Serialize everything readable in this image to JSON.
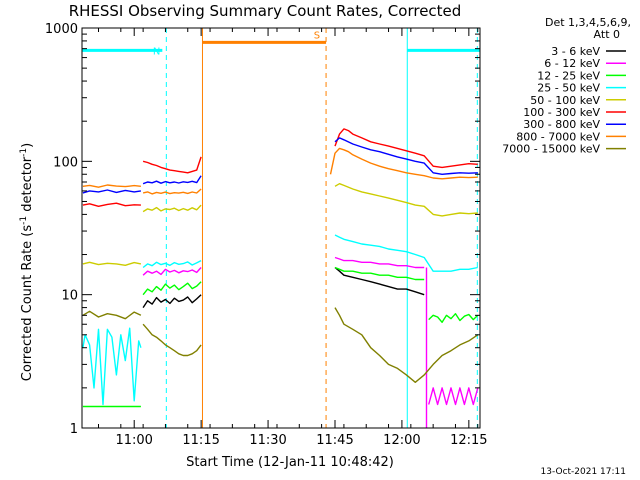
{
  "chart_data": {
    "type": "line",
    "title": "RHESSI Observing Summary Count Rates, Corrected",
    "xlabel": "Start Time (12-Jan-11 10:48:42)",
    "ylabel_main": "Corrected Count Rate (s",
    "ylabel_sup1": "-1",
    "ylabel_mid": " detector",
    "ylabel_sup2": "-1",
    "ylabel_end": ")",
    "yscale": "log",
    "ylim": [
      1,
      1000
    ],
    "xlim": [
      -13.7,
      75.5
    ],
    "x_unit": "minutes after 11:02:00",
    "x_ticks": [
      {
        "t": -2,
        "label": "11:00"
      },
      {
        "t": 13,
        "label": "11:15"
      },
      {
        "t": 28,
        "label": "11:30"
      },
      {
        "t": 43,
        "label": "11:45"
      },
      {
        "t": 58,
        "label": "12:00"
      },
      {
        "t": 73,
        "label": "12:15"
      }
    ],
    "y_ticks": [
      {
        "v": 1,
        "label": "1"
      },
      {
        "v": 10,
        "label": "10"
      },
      {
        "v": 100,
        "label": "100"
      },
      {
        "v": 1000,
        "label": "1000"
      }
    ],
    "legend_header": [
      "Det 1,3,4,5,6,9,",
      "Att 0"
    ],
    "legend_position": "top-right",
    "legend_entries": [
      {
        "label": "3 - 6 keV",
        "color": "#000000"
      },
      {
        "label": "6 - 12 keV",
        "color": "#ff00ff"
      },
      {
        "label": "12 - 25 keV",
        "color": "#00ff00"
      },
      {
        "label": "25 - 50 keV",
        "color": "#00ffff"
      },
      {
        "label": "50 - 100 keV",
        "color": "#cccc00"
      },
      {
        "label": "100 - 300 keV",
        "color": "#ff0000"
      },
      {
        "label": "300 - 800 keV",
        "color": "#0000ff"
      },
      {
        "label": "800 - 7000 keV",
        "color": "#ff8000"
      },
      {
        "label": "7000 - 15000 keV",
        "color": "#808000"
      }
    ],
    "state_bars": [
      {
        "label": "N",
        "color": "#00ffff",
        "segments": [
          [
            -13.7,
            4.3
          ],
          [
            59.2,
            75.5
          ]
        ],
        "level": 680
      },
      {
        "label": "S",
        "color": "#ff8000",
        "segments": [
          [
            13.3,
            41.0
          ]
        ],
        "level": 780
      }
    ],
    "vlines": [
      {
        "t": 5.2,
        "color": "#00ffff",
        "dash": true
      },
      {
        "t": 13.3,
        "color": "#ff8000",
        "dash": false
      },
      {
        "t": 41.0,
        "color": "#ff8000",
        "dash": true
      },
      {
        "t": 59.2,
        "color": "#00ffff",
        "dash": false
      },
      {
        "t": 74.9,
        "color": "#00ffff",
        "dash": true
      }
    ],
    "series": [
      {
        "name": "3 - 6 keV",
        "color": "#000000",
        "segments": [
          {
            "x": [
              0,
              1,
              2,
              3,
              4,
              5,
              6,
              7,
              8,
              9,
              10,
              11,
              12,
              13
            ],
            "y": [
              8,
              9,
              8.5,
              9.5,
              8.8,
              9.2,
              8.6,
              9.4,
              8.9,
              9.1,
              9.6,
              8.7,
              9.3,
              10
            ]
          },
          {
            "x": [
              43,
              44,
              45,
              47,
              49,
              51,
              53,
              55,
              57,
              59,
              61,
              63
            ],
            "y": [
              16,
              15,
              14,
              13.5,
              13,
              12.5,
              12,
              11.5,
              11,
              11,
              10.5,
              10
            ]
          }
        ]
      },
      {
        "name": "6 - 12 keV",
        "color": "#ff00ff",
        "segments": [
          {
            "x": [
              -0.5,
              -0.5
            ],
            "y": [
              1,
              0.9
            ]
          },
          {
            "x": [
              0,
              1,
              2,
              3,
              4,
              5,
              6,
              7,
              8,
              9,
              10,
              11,
              12,
              13
            ],
            "y": [
              14,
              15,
              14.5,
              15,
              14.2,
              15.5,
              14.8,
              15.2,
              14.6,
              15.1,
              14.9,
              15.3,
              14.7,
              16
            ]
          },
          {
            "x": [
              43,
              44,
              45,
              47,
              49,
              51,
              53,
              55,
              57,
              59,
              61,
              63
            ],
            "y": [
              19,
              18.5,
              18,
              18,
              17.5,
              17.5,
              17,
              17,
              16.5,
              16.5,
              16,
              16
            ]
          },
          {
            "x": [
              63.5,
              63.5
            ],
            "y": [
              16,
              1
            ]
          },
          {
            "x": [
              64,
              65,
              66,
              67,
              68,
              69,
              70,
              71,
              72,
              73,
              74,
              75
            ],
            "y": [
              1.5,
              2,
              1.5,
              2,
              1.5,
              2,
              1.5,
              2,
              1.5,
              2,
              1.5,
              2
            ]
          }
        ]
      },
      {
        "name": "12 - 25 keV",
        "color": "#00ff00",
        "segments": [
          {
            "x": [
              -13.5,
              -12,
              -10,
              -8,
              -6,
              -4,
              -2,
              -0.5
            ],
            "y": [
              1.45,
              1.45,
              1.45,
              1.45,
              1.45,
              1.45,
              1.45,
              1.45
            ]
          },
          {
            "x": [
              0,
              1,
              2,
              3,
              4,
              5,
              6,
              7,
              8,
              9,
              10,
              11,
              12,
              13
            ],
            "y": [
              10,
              11,
              10.5,
              11.5,
              10.8,
              12,
              11.2,
              11.8,
              10.9,
              11.5,
              12.2,
              11.1,
              11.6,
              12.5
            ]
          },
          {
            "x": [
              43,
              44,
              45,
              47,
              49,
              51,
              53,
              55,
              57,
              59,
              61,
              63
            ],
            "y": [
              16,
              15.5,
              15,
              15,
              14.5,
              14.5,
              14,
              14,
              13.5,
              13.5,
              13,
              13
            ]
          },
          {
            "x": [
              64,
              65,
              66,
              67,
              68,
              69,
              70,
              71,
              72,
              73,
              74,
              75
            ],
            "y": [
              6.5,
              7,
              6.8,
              6.2,
              7,
              6.6,
              7.2,
              6.4,
              6.9,
              7.1,
              6.5,
              7
            ]
          }
        ]
      },
      {
        "name": "25 - 50 keV",
        "color": "#00ffff",
        "segments": [
          {
            "x": [
              -13.5,
              -13,
              -12,
              -11,
              -10,
              -9,
              -8,
              -7,
              -6,
              -5,
              -4,
              -3,
              -2,
              -1,
              -0.5
            ],
            "y": [
              4,
              5,
              4.2,
              2,
              5.5,
              1.5,
              5.5,
              4.8,
              2.5,
              5,
              3.2,
              5.6,
              1.6,
              4.5,
              4
            ]
          },
          {
            "x": [
              0,
              1,
              2,
              3,
              4,
              5,
              6,
              7,
              8,
              9,
              10,
              11,
              12,
              13
            ],
            "y": [
              16,
              17,
              16.5,
              17.5,
              16.8,
              17.2,
              16.6,
              17.4,
              16.9,
              17.1,
              17.6,
              16.7,
              17.3,
              18
            ]
          },
          {
            "x": [
              43,
              44,
              45,
              47,
              49,
              51,
              53,
              55,
              57,
              59,
              61,
              63,
              65,
              67,
              69,
              71,
              73,
              75
            ],
            "y": [
              28,
              27,
              26,
              25,
              24,
              23.5,
              23,
              22,
              21.5,
              21,
              20,
              19,
              15,
              15,
              15,
              15.5,
              15.5,
              16
            ]
          }
        ]
      },
      {
        "name": "50 - 100 keV",
        "color": "#cccc00",
        "segments": [
          {
            "x": [
              -13.5,
              -12,
              -10,
              -8,
              -6,
              -4,
              -2,
              -0.5
            ],
            "y": [
              17,
              17.5,
              16.8,
              17.2,
              17,
              16.6,
              17.4,
              17
            ]
          },
          {
            "x": [
              0,
              1,
              2,
              3,
              4,
              5,
              6,
              7,
              8,
              9,
              10,
              11,
              12,
              13
            ],
            "y": [
              42,
              44,
              43,
              45,
              42.5,
              44,
              43.5,
              44.5,
              42.8,
              44.2,
              43,
              44.8,
              43.3,
              47
            ]
          },
          {
            "x": [
              43,
              44,
              45,
              47,
              49,
              51,
              53,
              55,
              57,
              59,
              61,
              63,
              65,
              67,
              69,
              71,
              73,
              75
            ],
            "y": [
              65,
              68,
              66,
              62,
              59,
              57,
              55,
              53,
              51,
              49,
              47,
              46,
              40,
              39,
              40,
              41,
              40.5,
              41
            ]
          }
        ]
      },
      {
        "name": "100 - 300 keV",
        "color": "#ff0000",
        "segments": [
          {
            "x": [
              -13.5,
              -12,
              -10,
              -8,
              -6,
              -4,
              -2,
              -0.5
            ],
            "y": [
              47,
              48,
              46,
              47.5,
              48.5,
              46.5,
              47.2,
              47
            ]
          },
          {
            "x": [
              0,
              1,
              2,
              3,
              4,
              5,
              6,
              7,
              8,
              9,
              10,
              11,
              12,
              13
            ],
            "y": [
              100,
              98,
              95,
              93,
              90,
              88,
              86,
              85,
              84,
              83,
              82,
              84,
              86,
              108
            ]
          },
          {
            "x": [
              43,
              44,
              45,
              46,
              47,
              49,
              51,
              53,
              55,
              57,
              59,
              61,
              63,
              65,
              67,
              69,
              71,
              73,
              75
            ],
            "y": [
              130,
              160,
              175,
              170,
              160,
              150,
              140,
              135,
              130,
              125,
              120,
              115,
              110,
              92,
              90,
              92,
              94,
              96,
              95
            ]
          }
        ]
      },
      {
        "name": "300 - 800 keV",
        "color": "#0000ff",
        "segments": [
          {
            "x": [
              -13.5,
              -12,
              -10,
              -8,
              -6,
              -4,
              -2,
              -0.5
            ],
            "y": [
              58,
              60,
              59,
              61,
              58.5,
              60.5,
              59,
              60
            ]
          },
          {
            "x": [
              0,
              1,
              2,
              3,
              4,
              5,
              6,
              7,
              8,
              9,
              10,
              11,
              12,
              13
            ],
            "y": [
              68,
              70,
              69,
              71,
              68.5,
              70.5,
              69,
              70,
              68.8,
              70.2,
              69.5,
              70.8,
              69.3,
              78
            ]
          },
          {
            "x": [
              43,
              44,
              45,
              47,
              49,
              51,
              53,
              55,
              57,
              59,
              61,
              63,
              65,
              67,
              69,
              71,
              73,
              75
            ],
            "y": [
              140,
              150,
              145,
              135,
              128,
              122,
              118,
              113,
              108,
              104,
              100,
              97,
              82,
              80,
              81,
              82,
              81.5,
              82
            ]
          }
        ]
      },
      {
        "name": "800 - 7000 keV",
        "color": "#ff8000",
        "segments": [
          {
            "x": [
              -13.5,
              -12,
              -10,
              -8,
              -6,
              -4,
              -2,
              -0.5
            ],
            "y": [
              65,
              66,
              64,
              66.5,
              65.2,
              64.6,
              65.8,
              65
            ]
          },
          {
            "x": [
              0,
              1,
              2,
              3,
              4,
              5,
              6,
              7,
              8,
              9,
              10,
              11,
              12,
              13
            ],
            "y": [
              58,
              59,
              57,
              58.5,
              57.6,
              58.8,
              57.3,
              58.2,
              57.8,
              58.6,
              57.5,
              58.9,
              57.9,
              62
            ]
          },
          {
            "x": [
              42,
              43,
              44,
              45,
              46,
              47,
              49,
              51,
              53,
              55,
              57,
              59,
              61,
              63,
              65,
              67,
              69,
              71,
              73,
              75
            ],
            "y": [
              80,
              115,
              125,
              122,
              118,
              112,
              104,
              97,
              92,
              88,
              85,
              82,
              80,
              78,
              75,
              74,
              75,
              76,
              75.5,
              76
            ]
          }
        ]
      },
      {
        "name": "7000 - 15000 keV",
        "color": "#808000",
        "segments": [
          {
            "x": [
              -13.5,
              -12,
              -10,
              -8,
              -6,
              -4,
              -2,
              -0.5
            ],
            "y": [
              7,
              7.5,
              6.8,
              7.2,
              7,
              6.6,
              7.4,
              7
            ]
          },
          {
            "x": [
              0,
              1,
              2,
              3,
              4,
              5,
              6,
              7,
              8,
              9,
              10,
              11,
              12,
              13
            ],
            "y": [
              6,
              5.5,
              5,
              4.8,
              4.5,
              4.2,
              4,
              3.8,
              3.6,
              3.5,
              3.5,
              3.6,
              3.8,
              4.2
            ]
          },
          {
            "x": [
              43,
              44,
              45,
              47,
              49,
              51,
              53,
              55,
              57,
              59,
              61,
              63,
              65,
              67,
              69,
              71,
              73,
              75
            ],
            "y": [
              8,
              7,
              6,
              5.5,
              5,
              4,
              3.5,
              3,
              2.8,
              2.5,
              2.2,
              2.5,
              3,
              3.5,
              3.8,
              4.2,
              4.5,
              5
            ]
          }
        ]
      }
    ]
  },
  "footer": {
    "timestamp": "13-Oct-2021 17:11"
  }
}
